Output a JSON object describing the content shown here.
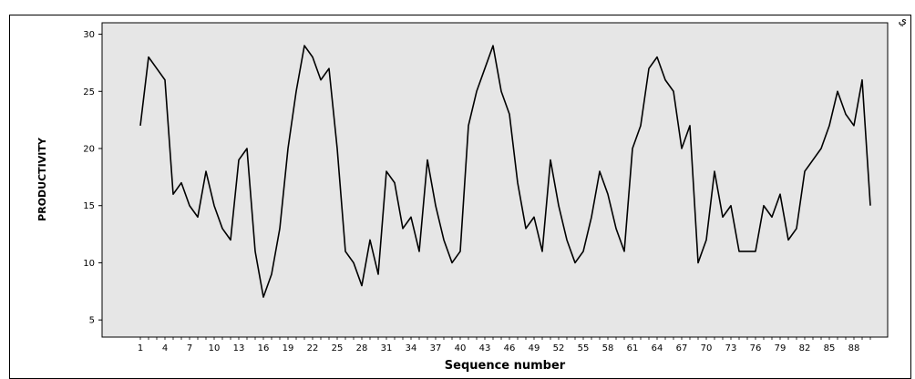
{
  "corner_text": "ي",
  "chart_data": {
    "type": "line",
    "xlabel": "Sequence number",
    "ylabel": "PRODUCTIVITY",
    "x": [
      1,
      2,
      3,
      4,
      5,
      6,
      7,
      8,
      9,
      10,
      11,
      12,
      13,
      14,
      15,
      16,
      17,
      18,
      19,
      20,
      21,
      22,
      23,
      24,
      25,
      26,
      27,
      28,
      29,
      30,
      31,
      32,
      33,
      34,
      35,
      36,
      37,
      38,
      39,
      40,
      41,
      42,
      43,
      44,
      45,
      46,
      47,
      48,
      49,
      50,
      51,
      52,
      53,
      54,
      55,
      56,
      57,
      58,
      59,
      60,
      61,
      62,
      63,
      64,
      65,
      66,
      67,
      68,
      69,
      70,
      71,
      72,
      73,
      74,
      75,
      76,
      77,
      78,
      79,
      80,
      81,
      82,
      83,
      84,
      85,
      86,
      87,
      88,
      89,
      90
    ],
    "values": [
      22,
      28,
      27,
      26,
      16,
      17,
      15,
      14,
      18,
      15,
      13,
      12,
      19,
      20,
      11,
      7,
      9,
      13,
      20,
      25,
      29,
      28,
      26,
      27,
      20,
      11,
      10,
      8,
      12,
      9,
      18,
      17,
      13,
      14,
      11,
      19,
      15,
      12,
      10,
      11,
      22,
      25,
      27,
      29,
      25,
      23,
      17,
      13,
      14,
      11,
      19,
      15,
      12,
      10,
      11,
      14,
      18,
      16,
      13,
      11,
      20,
      22,
      27,
      28,
      26,
      25,
      20,
      22,
      10,
      12,
      18,
      14,
      15,
      11,
      11,
      11,
      15,
      14,
      16,
      12,
      13,
      18,
      19,
      20,
      22,
      25,
      23,
      22,
      26,
      15
    ],
    "x_ticks": [
      "1",
      "4",
      "7",
      "10",
      "13",
      "16",
      "19",
      "22",
      "25",
      "28",
      "31",
      "34",
      "37",
      "40",
      "43",
      "46",
      "49",
      "52",
      "55",
      "58",
      "61",
      "64",
      "67",
      "70",
      "73",
      "76",
      "79",
      "82",
      "85",
      "88"
    ],
    "y_ticks": [
      "5",
      "10",
      "15",
      "20",
      "25",
      "30"
    ],
    "xlim": [
      1,
      90
    ],
    "ylim": [
      3.5,
      31
    ],
    "grid": false,
    "plot_background": "#e6e6e6",
    "line_color": "#000000"
  }
}
